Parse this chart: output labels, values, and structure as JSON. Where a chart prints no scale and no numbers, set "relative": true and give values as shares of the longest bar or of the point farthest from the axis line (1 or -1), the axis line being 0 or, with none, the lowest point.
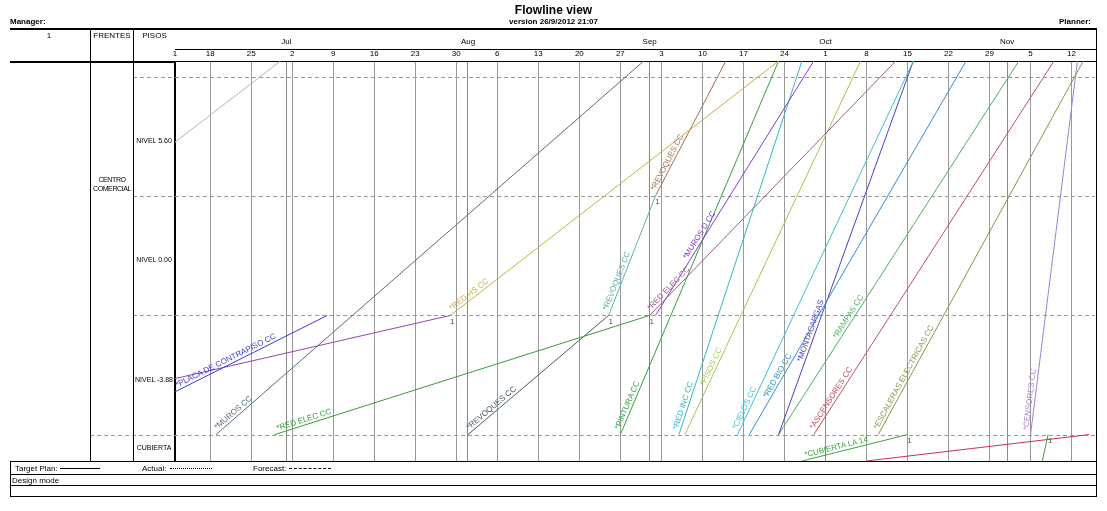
{
  "chart_data": {
    "type": "line",
    "title": "Flowline view",
    "subtitle": "version 26/9/2012 21:07",
    "annotations": [
      "Manager:",
      "Planner:",
      "1",
      "FRENTES",
      "PISOS",
      "CENTRO COMERCIAL",
      "Target Plan:",
      "Actual:",
      "Forecast:",
      "Design mode",
      {
        "text": "1",
        "x": "2012-07-29",
        "y": 0.364
      },
      {
        "text": "1",
        "x": "2012-08-25",
        "y": 0.364
      },
      {
        "text": "1",
        "x": "2012-09-01",
        "y": 0.364
      },
      {
        "text": "1",
        "x": "2012-09-02",
        "y": 0.663
      },
      {
        "text": "1",
        "x": "2012-10-15",
        "y": 0.066
      },
      {
        "text": "1",
        "x": "2012-11-08",
        "y": 0.066
      }
    ],
    "relative": true,
    "y_categories": [
      "NIVEL 5.60",
      "NIVEL 0.00",
      "NIVEL -3.88",
      "CUBIERTA"
    ],
    "xlim": [
      "2012-06-12",
      "2012-11-16"
    ],
    "xticks": [
      {
        "value": "2012-06-12",
        "label": "1"
      },
      {
        "value": "2012-06-18",
        "label": "18"
      },
      {
        "value": "2012-06-25",
        "label": "25"
      },
      {
        "value": "2012-07-02",
        "label": "2"
      },
      {
        "value": "2012-07-09",
        "label": "9"
      },
      {
        "value": "2012-07-16",
        "label": "16"
      },
      {
        "value": "2012-07-23",
        "label": "23"
      },
      {
        "value": "2012-07-30",
        "label": "30"
      },
      {
        "value": "2012-08-06",
        "label": "6"
      },
      {
        "value": "2012-08-13",
        "label": "13"
      },
      {
        "value": "2012-08-20",
        "label": "20"
      },
      {
        "value": "2012-08-27",
        "label": "27"
      },
      {
        "value": "2012-09-03",
        "label": "3"
      },
      {
        "value": "2012-09-10",
        "label": "10"
      },
      {
        "value": "2012-09-17",
        "label": "17"
      },
      {
        "value": "2012-09-24",
        "label": "24"
      },
      {
        "value": "2012-10-01",
        "label": "1"
      },
      {
        "value": "2012-10-08",
        "label": "8"
      },
      {
        "value": "2012-10-15",
        "label": "15"
      },
      {
        "value": "2012-10-22",
        "label": "22"
      },
      {
        "value": "2012-10-29",
        "label": "29"
      },
      {
        "value": "2012-11-05",
        "label": "5"
      },
      {
        "value": "2012-11-12",
        "label": "12"
      }
    ],
    "x2lim": [
      "2012-06-12",
      "2012-11-16"
    ],
    "x2ticks": [
      {
        "value": "2012-07-01",
        "label": "Jul"
      },
      {
        "value": "2012-08-01",
        "label": "Aug"
      },
      {
        "value": "2012-09-01",
        "label": "Sep"
      },
      {
        "value": "2012-10-01",
        "label": "Oct"
      },
      {
        "value": "2012-11-01",
        "label": "Nov"
      }
    ],
    "grid": true,
    "marker": "none",
    "line_style": "solid",
    "series": [
      {
        "color": "#b4b4c4",
        "x": [
          "2012-06-12",
          "2012-06-30"
        ],
        "values": [
          0.797,
          1
        ]
      },
      {
        "name": "*MUROS CC",
        "color": "#5a6a7a",
        "x": [
          "2012-06-19",
          "2012-08-31"
        ],
        "values": [
          0.066,
          1
        ]
      },
      {
        "name": "*PLACA DE CONTRAPISO CC",
        "color": "#3a3adc",
        "x": [
          "2012-06-12",
          "2012-07-08"
        ],
        "values": [
          0.173,
          0.364
        ]
      },
      {
        "color": "#9b3fb5",
        "x": [
          "2012-06-12",
          "2012-07-29"
        ],
        "values": [
          0.206,
          0.364
        ]
      },
      {
        "name": "*RED HS CC",
        "color": "#c8b040",
        "x": [
          "2012-07-29",
          "2012-09-23"
        ],
        "values": [
          0.364,
          1
        ]
      },
      {
        "name": "*RED ELEC CC",
        "color": "#3a9a3a",
        "x": [
          "2012-06-29",
          "2012-09-01"
        ],
        "values": [
          0.066,
          0.364
        ]
      },
      {
        "name": "*RED ELEC CC",
        "color": "#9a6080",
        "x": [
          "2012-09-01",
          "2012-10-13"
        ],
        "values": [
          0.364,
          1
        ]
      },
      {
        "name": "*MUROS D CC",
        "color": "#8a3ad0",
        "x": [
          "2012-09-02",
          "2012-09-29"
        ],
        "values": [
          0.364,
          1
        ]
      },
      {
        "name": "*REVOQUES CC",
        "color": "#4a5a6a",
        "x": [
          "2012-08-01",
          "2012-08-25"
        ],
        "values": [
          0.066,
          0.364
        ]
      },
      {
        "name": "*REVOQUES CC",
        "color": "#60b0b0",
        "x": [
          "2012-08-25",
          "2012-09-02"
        ],
        "values": [
          0.364,
          0.663
        ]
      },
      {
        "name": "*REVOQUES CC",
        "color": "#a07050",
        "x": [
          "2012-09-02",
          "2012-09-14"
        ],
        "values": [
          0.663,
          1
        ]
      },
      {
        "name": "*PINTURA CC",
        "color": "#30a040",
        "x": [
          "2012-08-27",
          "2012-09-23"
        ],
        "values": [
          0.066,
          1
        ]
      },
      {
        "name": "*RED INC CC",
        "color": "#30b8c8",
        "x": [
          "2012-09-06",
          "2012-09-27"
        ],
        "values": [
          0.066,
          1
        ]
      },
      {
        "name": "*PISOS CC",
        "color": "#a0c850",
        "x": [
          "2012-09-07",
          "2012-10-07"
        ],
        "values": [
          0.066,
          1
        ]
      },
      {
        "name": "*CIELOS CC",
        "color": "#40c0d0",
        "x": [
          "2012-09-16",
          "2012-10-16"
        ],
        "values": [
          0.066,
          1
        ]
      },
      {
        "name": "*RED BIO CC",
        "color": "#3090d0",
        "x": [
          "2012-09-18",
          "2012-10-25"
        ],
        "values": [
          0.066,
          1
        ]
      },
      {
        "name": "*MONTACARGAS",
        "color": "#5040c0",
        "x": [
          "2012-09-23",
          "2012-10-16"
        ],
        "values": [
          0.066,
          1
        ]
      },
      {
        "name": "*RAMPAS CC",
        "color": "#50b060",
        "x": [
          "2012-09-23",
          "2012-11-03"
        ],
        "values": [
          0.066,
          1
        ]
      },
      {
        "name": "*ASCENSORES CC",
        "color": "#c05060",
        "x": [
          "2012-09-29",
          "2012-11-09"
        ],
        "values": [
          0.066,
          1
        ]
      },
      {
        "name": "*ESCALERAS ELECTRICAS CC",
        "color": "#909050",
        "x": [
          "2012-10-10",
          "2012-11-14"
        ],
        "values": [
          0.066,
          1
        ]
      },
      {
        "name": "*CENSORES CC",
        "color": "#a080d0",
        "x": [
          "2012-11-05",
          "2012-11-13"
        ],
        "values": [
          0.066,
          1
        ]
      },
      {
        "name": "*CUBIERTA LA 14",
        "color": "#40a040",
        "x": [
          "2012-09-27",
          "2012-10-15"
        ],
        "values": [
          0,
          0.066
        ]
      },
      {
        "color": "#d03050",
        "x": [
          "2012-10-08",
          "2012-11-15"
        ],
        "values": [
          0,
          0.066
        ]
      },
      {
        "color": "#40a040",
        "x": [
          "2012-11-07",
          "2012-11-08"
        ],
        "values": [
          0,
          0.066
        ]
      }
    ]
  }
}
